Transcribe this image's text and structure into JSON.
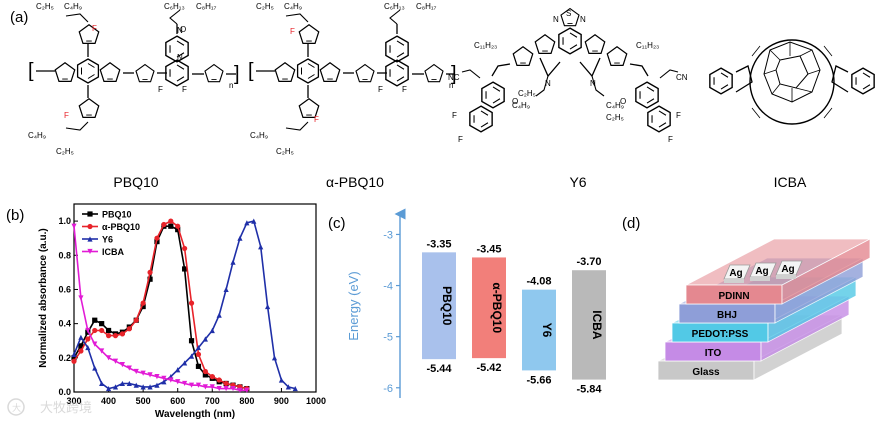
{
  "panel_labels": {
    "a": "(a)",
    "b": "(b)",
    "c": "(c)",
    "d": "(d)"
  },
  "molecules": [
    {
      "name": "PBQ10"
    },
    {
      "name": "α-PBQ10"
    },
    {
      "name": "Y6"
    },
    {
      "name": "ICBA"
    }
  ],
  "chem_labels": {
    "c2h5": "C₂H₅",
    "c4h9": "C₄H₉",
    "c6h13": "C₆H₁₃",
    "c8h17": "C₈H₁₇",
    "c11h23": "C₁₁H₂₃",
    "F": "F",
    "N": "N",
    "S": "S",
    "O": "O",
    "CN": "CN",
    "NC": "NC",
    "n": "n"
  },
  "chart_data": {
    "type": "line",
    "xlabel": "Wavelength (nm)",
    "ylabel": "Normalized absorbance (a.u.)",
    "xlim": [
      300,
      1000
    ],
    "ylim": [
      0.0,
      1.1
    ],
    "xticks": [
      300,
      400,
      500,
      600,
      700,
      800,
      900,
      1000
    ],
    "yticks": [
      0.0,
      0.2,
      0.4,
      0.6,
      0.8,
      1.0
    ],
    "legend_position": "top-left",
    "series": [
      {
        "name": "PBQ10",
        "color": "#000000",
        "marker": "square",
        "x": [
          300,
          320,
          340,
          360,
          380,
          400,
          420,
          440,
          460,
          480,
          500,
          520,
          540,
          560,
          580,
          600,
          620,
          640,
          660,
          680,
          700,
          720,
          740,
          760,
          780,
          800
        ],
        "y": [
          0.2,
          0.27,
          0.35,
          0.42,
          0.4,
          0.36,
          0.34,
          0.35,
          0.38,
          0.42,
          0.5,
          0.66,
          0.88,
          0.97,
          0.97,
          0.95,
          0.72,
          0.3,
          0.15,
          0.1,
          0.08,
          0.06,
          0.05,
          0.04,
          0.03,
          0.02
        ]
      },
      {
        "name": "α-PBQ10",
        "color": "#e8232a",
        "marker": "circle",
        "x": [
          300,
          320,
          340,
          360,
          380,
          400,
          420,
          440,
          460,
          480,
          500,
          520,
          540,
          560,
          580,
          600,
          620,
          640,
          660,
          680,
          700,
          720,
          740,
          760,
          780,
          800
        ],
        "y": [
          0.18,
          0.24,
          0.31,
          0.36,
          0.36,
          0.33,
          0.33,
          0.34,
          0.37,
          0.42,
          0.52,
          0.7,
          0.9,
          0.98,
          1.0,
          0.97,
          0.84,
          0.52,
          0.22,
          0.12,
          0.09,
          0.07,
          0.05,
          0.04,
          0.03,
          0.02
        ]
      },
      {
        "name": "Y6",
        "color": "#1f2fa8",
        "marker": "triangle",
        "x": [
          300,
          320,
          340,
          360,
          380,
          400,
          420,
          440,
          460,
          480,
          500,
          520,
          540,
          560,
          580,
          600,
          620,
          640,
          660,
          680,
          700,
          720,
          740,
          760,
          780,
          800,
          820,
          840,
          860,
          880,
          900,
          920,
          940
        ],
        "y": [
          0.22,
          0.32,
          0.26,
          0.14,
          0.05,
          0.02,
          0.03,
          0.05,
          0.05,
          0.04,
          0.03,
          0.03,
          0.04,
          0.06,
          0.09,
          0.13,
          0.17,
          0.21,
          0.26,
          0.31,
          0.36,
          0.45,
          0.6,
          0.76,
          0.9,
          0.99,
          1.0,
          0.85,
          0.5,
          0.2,
          0.07,
          0.03,
          0.02
        ]
      },
      {
        "name": "ICBA",
        "color": "#e21bd6",
        "marker": "inverted-triangle",
        "x": [
          300,
          320,
          340,
          360,
          380,
          400,
          420,
          440,
          460,
          480,
          500,
          520,
          540,
          560,
          580,
          600,
          620,
          640,
          660,
          680,
          700,
          720,
          740,
          760,
          780,
          800
        ],
        "y": [
          0.97,
          0.55,
          0.36,
          0.28,
          0.24,
          0.2,
          0.18,
          0.16,
          0.14,
          0.12,
          0.11,
          0.1,
          0.09,
          0.08,
          0.07,
          0.06,
          0.05,
          0.04,
          0.04,
          0.03,
          0.03,
          0.02,
          0.02,
          0.02,
          0.01,
          0.01
        ]
      }
    ]
  },
  "energy_diagram": {
    "axis_label": "Energy (eV)",
    "axis_ticks": [
      -3,
      -4,
      -5,
      -6
    ],
    "ylim": [
      -2.6,
      -6.2
    ],
    "axis_color": "#5b9bd5",
    "levels": [
      {
        "name": "PBQ10",
        "lumo": -3.35,
        "homo": -5.44,
        "lumo_label": "-3.35",
        "homo_label": "-5.44",
        "color": "#a9c1ec"
      },
      {
        "name": "α-PBQ10",
        "lumo": -3.45,
        "homo": -5.42,
        "lumo_label": "-3.45",
        "homo_label": "-5.42",
        "color": "#f27f7a"
      },
      {
        "name": "Y6",
        "lumo": -4.08,
        "homo": -5.66,
        "lumo_label": "-4.08",
        "homo_label": "-5.66",
        "color": "#8fc8ee"
      },
      {
        "name": "ICBA",
        "lumo": -3.7,
        "homo": -5.84,
        "lumo_label": "-3.70",
        "homo_label": "-5.84",
        "color": "#b9b9b9"
      }
    ]
  },
  "device_stack": {
    "electrodes": [
      "Ag",
      "Ag",
      "Ag"
    ],
    "layers": [
      {
        "name": "PDINN",
        "color": "#e48890"
      },
      {
        "name": "BHJ",
        "color": "#8e9ed8"
      },
      {
        "name": "PEDOT:PSS",
        "color": "#52c9e6"
      },
      {
        "name": "ITO",
        "color": "#c58be6"
      },
      {
        "name": "Glass",
        "color": "#c8c8c8"
      }
    ]
  },
  "watermark": "大牧跨境"
}
